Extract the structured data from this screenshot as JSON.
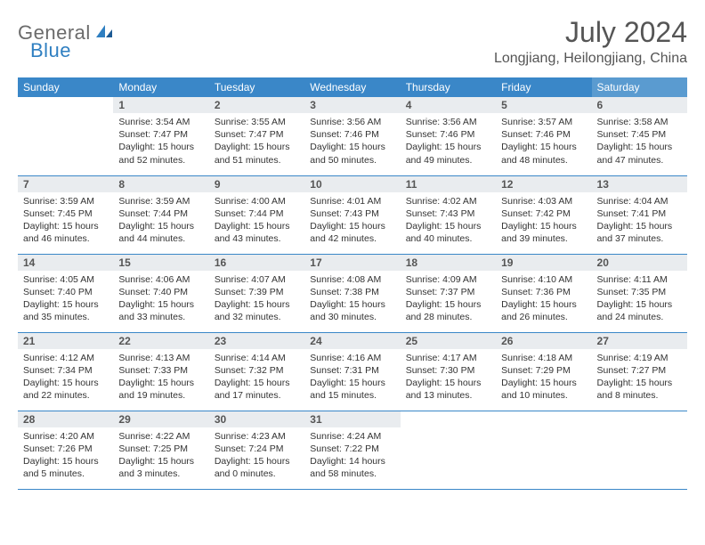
{
  "logo": {
    "text1": "General",
    "text2": "Blue"
  },
  "title": "July 2024",
  "location": "Longjiang, Heilongjiang, China",
  "colors": {
    "header_bg": "#3a87c8",
    "header_bg_sat": "#5a9bd0",
    "daynum_bg": "#e9ecef",
    "row_border": "#3a87c8",
    "logo_gray": "#6b6b6b",
    "logo_blue": "#2f7fc1"
  },
  "weekdays": [
    "Sunday",
    "Monday",
    "Tuesday",
    "Wednesday",
    "Thursday",
    "Friday",
    "Saturday"
  ],
  "weeks": [
    [
      null,
      {
        "n": "1",
        "sr": "3:54 AM",
        "ss": "7:47 PM",
        "dl": "15 hours and 52 minutes."
      },
      {
        "n": "2",
        "sr": "3:55 AM",
        "ss": "7:47 PM",
        "dl": "15 hours and 51 minutes."
      },
      {
        "n": "3",
        "sr": "3:56 AM",
        "ss": "7:46 PM",
        "dl": "15 hours and 50 minutes."
      },
      {
        "n": "4",
        "sr": "3:56 AM",
        "ss": "7:46 PM",
        "dl": "15 hours and 49 minutes."
      },
      {
        "n": "5",
        "sr": "3:57 AM",
        "ss": "7:46 PM",
        "dl": "15 hours and 48 minutes."
      },
      {
        "n": "6",
        "sr": "3:58 AM",
        "ss": "7:45 PM",
        "dl": "15 hours and 47 minutes."
      }
    ],
    [
      {
        "n": "7",
        "sr": "3:59 AM",
        "ss": "7:45 PM",
        "dl": "15 hours and 46 minutes."
      },
      {
        "n": "8",
        "sr": "3:59 AM",
        "ss": "7:44 PM",
        "dl": "15 hours and 44 minutes."
      },
      {
        "n": "9",
        "sr": "4:00 AM",
        "ss": "7:44 PM",
        "dl": "15 hours and 43 minutes."
      },
      {
        "n": "10",
        "sr": "4:01 AM",
        "ss": "7:43 PM",
        "dl": "15 hours and 42 minutes."
      },
      {
        "n": "11",
        "sr": "4:02 AM",
        "ss": "7:43 PM",
        "dl": "15 hours and 40 minutes."
      },
      {
        "n": "12",
        "sr": "4:03 AM",
        "ss": "7:42 PM",
        "dl": "15 hours and 39 minutes."
      },
      {
        "n": "13",
        "sr": "4:04 AM",
        "ss": "7:41 PM",
        "dl": "15 hours and 37 minutes."
      }
    ],
    [
      {
        "n": "14",
        "sr": "4:05 AM",
        "ss": "7:40 PM",
        "dl": "15 hours and 35 minutes."
      },
      {
        "n": "15",
        "sr": "4:06 AM",
        "ss": "7:40 PM",
        "dl": "15 hours and 33 minutes."
      },
      {
        "n": "16",
        "sr": "4:07 AM",
        "ss": "7:39 PM",
        "dl": "15 hours and 32 minutes."
      },
      {
        "n": "17",
        "sr": "4:08 AM",
        "ss": "7:38 PM",
        "dl": "15 hours and 30 minutes."
      },
      {
        "n": "18",
        "sr": "4:09 AM",
        "ss": "7:37 PM",
        "dl": "15 hours and 28 minutes."
      },
      {
        "n": "19",
        "sr": "4:10 AM",
        "ss": "7:36 PM",
        "dl": "15 hours and 26 minutes."
      },
      {
        "n": "20",
        "sr": "4:11 AM",
        "ss": "7:35 PM",
        "dl": "15 hours and 24 minutes."
      }
    ],
    [
      {
        "n": "21",
        "sr": "4:12 AM",
        "ss": "7:34 PM",
        "dl": "15 hours and 22 minutes."
      },
      {
        "n": "22",
        "sr": "4:13 AM",
        "ss": "7:33 PM",
        "dl": "15 hours and 19 minutes."
      },
      {
        "n": "23",
        "sr": "4:14 AM",
        "ss": "7:32 PM",
        "dl": "15 hours and 17 minutes."
      },
      {
        "n": "24",
        "sr": "4:16 AM",
        "ss": "7:31 PM",
        "dl": "15 hours and 15 minutes."
      },
      {
        "n": "25",
        "sr": "4:17 AM",
        "ss": "7:30 PM",
        "dl": "15 hours and 13 minutes."
      },
      {
        "n": "26",
        "sr": "4:18 AM",
        "ss": "7:29 PM",
        "dl": "15 hours and 10 minutes."
      },
      {
        "n": "27",
        "sr": "4:19 AM",
        "ss": "7:27 PM",
        "dl": "15 hours and 8 minutes."
      }
    ],
    [
      {
        "n": "28",
        "sr": "4:20 AM",
        "ss": "7:26 PM",
        "dl": "15 hours and 5 minutes."
      },
      {
        "n": "29",
        "sr": "4:22 AM",
        "ss": "7:25 PM",
        "dl": "15 hours and 3 minutes."
      },
      {
        "n": "30",
        "sr": "4:23 AM",
        "ss": "7:24 PM",
        "dl": "15 hours and 0 minutes."
      },
      {
        "n": "31",
        "sr": "4:24 AM",
        "ss": "7:22 PM",
        "dl": "14 hours and 58 minutes."
      },
      null,
      null,
      null
    ]
  ],
  "labels": {
    "sunrise": "Sunrise: ",
    "sunset": "Sunset: ",
    "daylight": "Daylight: "
  }
}
